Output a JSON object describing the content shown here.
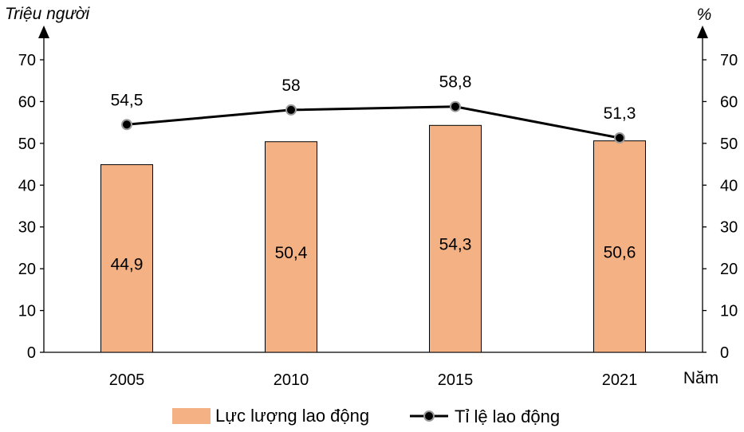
{
  "chart_data": {
    "type": "bar",
    "categories": [
      "2005",
      "2010",
      "2015",
      "2021"
    ],
    "x_unit": "Năm",
    "y_left_unit": "Triệu người",
    "y_right_unit": "%",
    "ylim": [
      0,
      70
    ],
    "yticks": [
      0,
      10,
      20,
      30,
      40,
      50,
      60,
      70
    ],
    "grid": false,
    "legend_position": "bottom",
    "series": [
      {
        "name": "Lực lượng lao động",
        "type": "bar",
        "axis": "left",
        "color": "#F4B183",
        "values": [
          44.9,
          50.4,
          54.3,
          50.6
        ],
        "labels": [
          "44,9",
          "50,4",
          "54,3",
          "50,6"
        ]
      },
      {
        "name": "Tỉ lệ lao động",
        "type": "line",
        "axis": "right",
        "color": "#000000",
        "values": [
          54.5,
          58,
          58.8,
          51.3
        ],
        "labels": [
          "54,5",
          "58",
          "58,8",
          "51,3"
        ]
      }
    ]
  }
}
